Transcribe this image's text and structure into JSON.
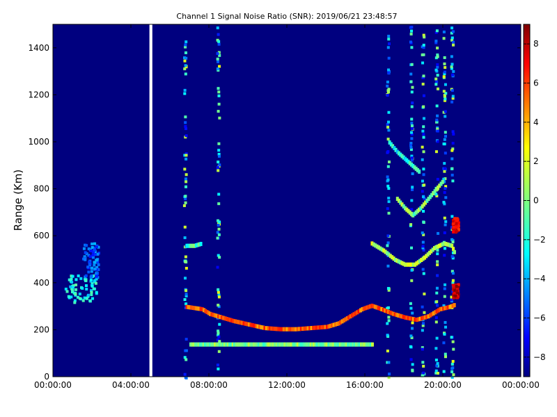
{
  "figure": {
    "title": "Channel 1 Signal Noise Ratio (SNR): 2019/06/21 23:48:57"
  },
  "chart_data": {
    "type": "heatmap",
    "title": "Channel 1 Signal Noise Ratio (SNR): 2019/06/21 23:48:57",
    "xlabel": "",
    "ylabel": "Range (Km)",
    "x_tick_labels": [
      "00:00:00",
      "04:00:00",
      "08:00:00",
      "12:00:00",
      "16:00:00",
      "20:00:00",
      "00:00:00"
    ],
    "x_ticks_hours": [
      0,
      4,
      8,
      12,
      16,
      20,
      24
    ],
    "xlim_hours": [
      0,
      24
    ],
    "y_ticks": [
      0,
      200,
      400,
      600,
      800,
      1000,
      1200,
      1400
    ],
    "ylim": [
      0,
      1500
    ],
    "colorbar": {
      "ticks": [
        8,
        6,
        4,
        2,
        0,
        -2,
        -4,
        -6,
        -8
      ],
      "range": [
        -9,
        9
      ],
      "colormap": "jet"
    },
    "background_snr": -9,
    "data_gap_hours": [
      4.95,
      5.1
    ],
    "traces": [
      {
        "label": "upper-layer-echo",
        "points_hours_km": [
          [
            6.8,
            300
          ],
          [
            7.2,
            295
          ],
          [
            7.6,
            290
          ],
          [
            8.0,
            270
          ],
          [
            8.6,
            255
          ],
          [
            9.2,
            240
          ],
          [
            10,
            225
          ],
          [
            10.8,
            210
          ],
          [
            11.6,
            205
          ],
          [
            12.4,
            205
          ],
          [
            13.2,
            210
          ],
          [
            14.0,
            215
          ],
          [
            14.6,
            230
          ],
          [
            15.2,
            260
          ],
          [
            15.8,
            290
          ],
          [
            16.3,
            305
          ],
          [
            16.8,
            290
          ],
          [
            17.4,
            270
          ],
          [
            18.0,
            255
          ],
          [
            18.6,
            245
          ],
          [
            19.2,
            260
          ],
          [
            19.8,
            290
          ],
          [
            20.3,
            300
          ],
          [
            20.6,
            310
          ]
        ],
        "snr": 5
      },
      {
        "label": "lower-layer-echo",
        "points_hours_km": [
          [
            7.0,
            140
          ],
          [
            8.0,
            140
          ],
          [
            9.0,
            140
          ],
          [
            10,
            140
          ],
          [
            11,
            140
          ],
          [
            12,
            140
          ],
          [
            13,
            140
          ],
          [
            14,
            140
          ],
          [
            15,
            140
          ],
          [
            16,
            140
          ],
          [
            16.4,
            140
          ]
        ],
        "snr": 0
      },
      {
        "label": "upper-echo-branch",
        "points_hours_km": [
          [
            16.3,
            570
          ],
          [
            16.9,
            540
          ],
          [
            17.5,
            500
          ],
          [
            18.0,
            480
          ],
          [
            18.5,
            480
          ],
          [
            19.0,
            510
          ],
          [
            19.5,
            550
          ],
          [
            20.0,
            570
          ],
          [
            20.4,
            560
          ],
          [
            20.6,
            520
          ]
        ],
        "snr": 1
      },
      {
        "label": "high-branch",
        "points_hours_km": [
          [
            17.6,
            760
          ],
          [
            18.0,
            720
          ],
          [
            18.4,
            690
          ],
          [
            18.8,
            720
          ],
          [
            19.2,
            760
          ],
          [
            19.6,
            800
          ],
          [
            20.0,
            840
          ]
        ],
        "snr": 0
      },
      {
        "label": "descending-line",
        "points_hours_km": [
          [
            17.2,
            1000
          ],
          [
            17.6,
            960
          ],
          [
            18.0,
            930
          ],
          [
            18.4,
            900
          ],
          [
            18.8,
            870
          ]
        ],
        "snr": -2
      },
      {
        "label": "early-segment",
        "points_hours_km": [
          [
            6.8,
            560
          ],
          [
            7.2,
            560
          ],
          [
            7.6,
            570
          ]
        ],
        "snr": -1
      }
    ],
    "blobs": [
      {
        "label": "early-morning-echo",
        "center_hours_km": [
          1.4,
          380
        ],
        "size_hours_km": [
          1.6,
          120
        ],
        "snr": -2
      },
      {
        "label": "early-morning-upper",
        "center_hours_km": [
          1.9,
          500
        ],
        "size_hours_km": [
          0.8,
          150
        ],
        "snr": -5
      },
      {
        "label": "late-hotspot",
        "center_hours_km": [
          20.6,
          370
        ],
        "size_hours_km": [
          0.3,
          60
        ],
        "snr": 8
      },
      {
        "label": "late-upper-hotspot",
        "center_hours_km": [
          20.6,
          650
        ],
        "size_hours_km": [
          0.3,
          60
        ],
        "snr": 7
      }
    ],
    "vertical_streaks_hours": [
      6.8,
      8.5,
      17.2,
      18.4,
      19.0,
      19.7,
      20.1,
      20.5
    ]
  }
}
